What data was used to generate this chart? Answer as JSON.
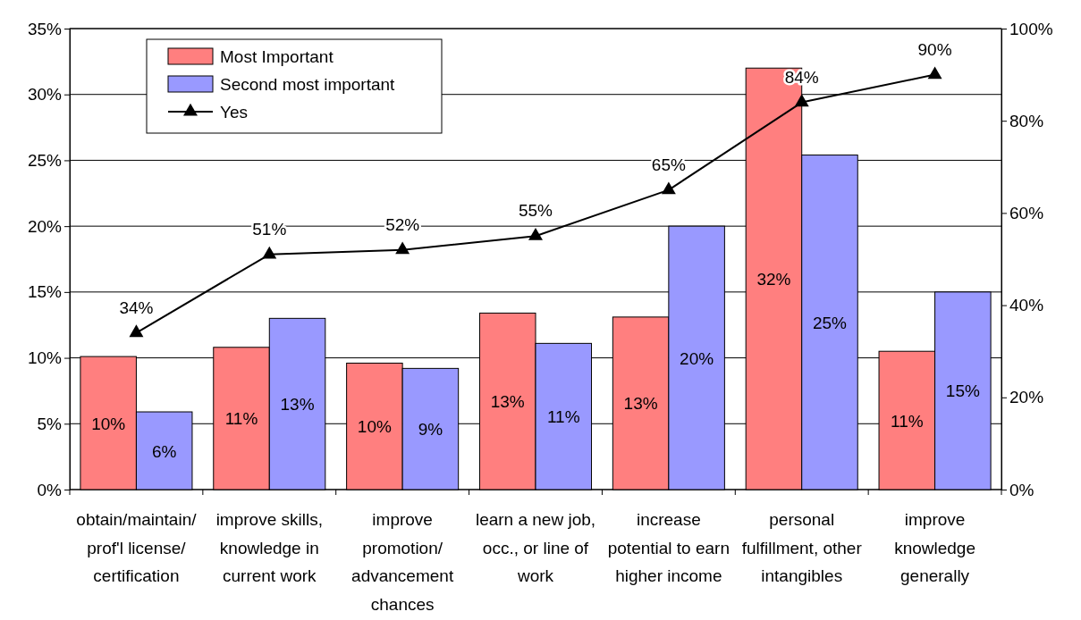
{
  "chart_data": {
    "type": "bar",
    "categories": [
      "obtain/maintain/ prof'l license/ certification",
      "improve skills, knowledge in current work",
      "improve promotion/ advancement chances",
      "learn a new job, occ., or line of work",
      "increase potential to earn higher income",
      "personal fulfillment, other intangibles",
      "improve knowledge generally"
    ],
    "series": [
      {
        "name": "Most Important",
        "color": "#ff7f7f",
        "values": [
          10.1,
          10.8,
          9.6,
          13.4,
          13.1,
          32.0,
          10.5
        ],
        "value_labels": [
          "10%",
          "11%",
          "10%",
          "13%",
          "13%",
          "32%",
          "11%"
        ]
      },
      {
        "name": "Second most important",
        "color": "#9999ff",
        "values": [
          5.9,
          13.0,
          9.2,
          11.1,
          20.0,
          25.4,
          15.0
        ],
        "value_labels": [
          "6%",
          "13%",
          "9%",
          "11%",
          "20%",
          "25%",
          "15%"
        ]
      },
      {
        "name": "Yes",
        "type": "line",
        "axis": "y2",
        "color": "#000000",
        "marker": "triangle",
        "values": [
          34,
          51,
          52,
          55,
          65,
          84,
          90
        ],
        "value_labels": [
          "34%",
          "51%",
          "52%",
          "55%",
          "65%",
          "84%",
          "90%"
        ]
      }
    ],
    "ylim": [
      0,
      35
    ],
    "yticks": [
      {
        "value": 0,
        "label": "0%"
      },
      {
        "value": 5,
        "label": "5%"
      },
      {
        "value": 10,
        "label": "10%"
      },
      {
        "value": 15,
        "label": "15%"
      },
      {
        "value": 20,
        "label": "20%"
      },
      {
        "value": 25,
        "label": "25%"
      },
      {
        "value": 30,
        "label": "30%"
      },
      {
        "value": 35,
        "label": "35%"
      }
    ],
    "y2lim": [
      0,
      100
    ],
    "y2ticks": [
      {
        "value": 0,
        "label": "0%"
      },
      {
        "value": 20,
        "label": "20%"
      },
      {
        "value": 40,
        "label": "40%"
      },
      {
        "value": 60,
        "label": "60%"
      },
      {
        "value": 80,
        "label": "80%"
      },
      {
        "value": 100,
        "label": "100%"
      }
    ],
    "grid": "y",
    "legend": "top left"
  }
}
